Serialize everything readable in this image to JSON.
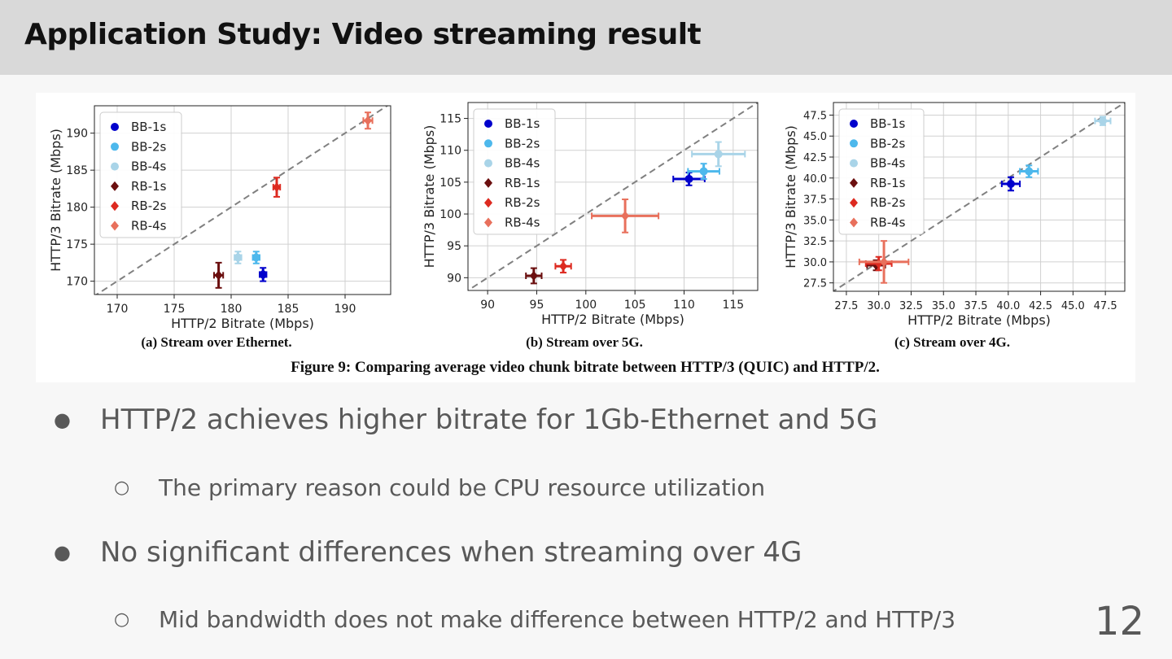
{
  "slide": {
    "title": "Application Study: Video streaming result",
    "page_number": "12"
  },
  "figure": {
    "caption": "Figure 9: Comparing average video chunk bitrate between HTTP/3 (QUIC) and HTTP/2."
  },
  "bullets": [
    {
      "level": 1,
      "marker": "●",
      "text": "HTTP/2 achieves higher bitrate for 1Gb-Ethernet and 5G"
    },
    {
      "level": 2,
      "marker": "○",
      "text": "The primary reason could be CPU resource utilization"
    },
    {
      "level": 1,
      "marker": "●",
      "text": "No significant differences when streaming over 4G"
    },
    {
      "level": 2,
      "marker": "○",
      "text": "Mid bandwidth does not make difference between HTTP/2 and HTTP/3"
    }
  ],
  "colors": {
    "BB-1s": "#0000cc",
    "BB-2s": "#4db8ec",
    "BB-4s": "#a9d4e8",
    "RB-1s": "#6b0f0f",
    "RB-2s": "#dd2a20",
    "RB-4s": "#e8705c",
    "diagonal": "#808080"
  },
  "chart_data": [
    {
      "type": "scatter",
      "subcaption": "(a) Stream over Ethernet.",
      "xlabel": "HTTP/2 Bitrate (Mbps)",
      "ylabel": "HTTP/3 Bitrate (Mbps)",
      "xlim": [
        168,
        194
      ],
      "ylim": [
        168.2,
        193.7
      ],
      "xticks": [
        170,
        175,
        180,
        185,
        190
      ],
      "yticks": [
        170,
        175,
        180,
        185,
        190
      ],
      "xtick_labels": [
        "170",
        "175",
        "180",
        "185",
        "190"
      ],
      "ytick_labels": [
        "170",
        "175",
        "180",
        "185",
        "190"
      ],
      "grid": true,
      "legend_position": "top-left",
      "diagonal": "y = x (dashed)",
      "series": [
        {
          "name": "BB-1s",
          "marker": "circle",
          "points": [
            {
              "x": 182.8,
              "y": 170.9,
              "xerr": 0.3,
              "yerr": 0.9
            }
          ]
        },
        {
          "name": "BB-2s",
          "marker": "circle",
          "points": [
            {
              "x": 182.2,
              "y": 173.2,
              "xerr": 0.3,
              "yerr": 0.8
            }
          ]
        },
        {
          "name": "BB-4s",
          "marker": "circle",
          "points": [
            {
              "x": 180.6,
              "y": 173.2,
              "xerr": 0.3,
              "yerr": 0.8
            }
          ]
        },
        {
          "name": "RB-1s",
          "marker": "diamond",
          "points": [
            {
              "x": 178.9,
              "y": 170.8,
              "xerr": 0.4,
              "yerr": 1.7
            }
          ]
        },
        {
          "name": "RB-2s",
          "marker": "diamond",
          "points": [
            {
              "x": 184.0,
              "y": 182.7,
              "xerr": 0.3,
              "yerr": 1.3
            }
          ]
        },
        {
          "name": "RB-4s",
          "marker": "diamond",
          "points": [
            {
              "x": 192.0,
              "y": 191.7,
              "xerr": 0.4,
              "yerr": 1.1
            }
          ]
        }
      ]
    },
    {
      "type": "scatter",
      "subcaption": "(b) Stream over 5G.",
      "xlabel": "HTTP/2 Bitrate (Mbps)",
      "ylabel": "HTTP/3 Bitrate (Mbps)",
      "xlim": [
        88,
        117.5
      ],
      "ylim": [
        88,
        117.5
      ],
      "xticks": [
        90,
        95,
        100,
        105,
        110,
        115
      ],
      "yticks": [
        90,
        95,
        100,
        105,
        110,
        115
      ],
      "xtick_labels": [
        "90",
        "95",
        "100",
        "105",
        "110",
        "115"
      ],
      "ytick_labels": [
        "90",
        "95",
        "100",
        "105",
        "110",
        "115"
      ],
      "grid": true,
      "legend_position": "top-left",
      "diagonal": "y = x (dashed)",
      "series": [
        {
          "name": "BB-1s",
          "marker": "circle",
          "points": [
            {
              "x": 110.5,
              "y": 105.5,
              "xerr": 1.6,
              "yerr": 1.0
            }
          ]
        },
        {
          "name": "BB-2s",
          "marker": "circle",
          "points": [
            {
              "x": 112.0,
              "y": 106.7,
              "xerr": 1.6,
              "yerr": 1.2
            }
          ]
        },
        {
          "name": "BB-4s",
          "marker": "circle",
          "points": [
            {
              "x": 113.5,
              "y": 109.4,
              "xerr": 2.7,
              "yerr": 1.9
            }
          ]
        },
        {
          "name": "RB-1s",
          "marker": "diamond",
          "points": [
            {
              "x": 94.7,
              "y": 90.3,
              "xerr": 0.8,
              "yerr": 1.2
            }
          ]
        },
        {
          "name": "RB-2s",
          "marker": "diamond",
          "points": [
            {
              "x": 97.7,
              "y": 91.8,
              "xerr": 0.8,
              "yerr": 1.0
            }
          ]
        },
        {
          "name": "RB-4s",
          "marker": "diamond",
          "points": [
            {
              "x": 104.0,
              "y": 99.7,
              "xerr": 3.4,
              "yerr": 2.6
            }
          ]
        }
      ]
    },
    {
      "type": "scatter",
      "subcaption": "(c) Stream over 4G.",
      "xlabel": "HTTP/2 Bitrate (Mbps)",
      "ylabel": "HTTP/3 Bitrate (Mbps)",
      "xlim": [
        26.5,
        49
      ],
      "ylim": [
        26.5,
        49
      ],
      "xticks": [
        27.5,
        30.0,
        32.5,
        35.0,
        37.5,
        40.0,
        42.5,
        45.0,
        47.5
      ],
      "yticks": [
        27.5,
        30.0,
        32.5,
        35.0,
        37.5,
        40.0,
        42.5,
        45.0,
        47.5
      ],
      "xtick_labels": [
        "27.5",
        "30.0",
        "32.5",
        "35.0",
        "37.5",
        "40.0",
        "42.5",
        "45.0",
        "47.5"
      ],
      "ytick_labels": [
        "27.5",
        "30.0",
        "32.5",
        "35.0",
        "37.5",
        "40.0",
        "42.5",
        "45.0",
        "47.5"
      ],
      "grid": true,
      "legend_position": "top-left",
      "diagonal": "y = x (dashed)",
      "series": [
        {
          "name": "BB-1s",
          "marker": "circle",
          "points": [
            {
              "x": 40.2,
              "y": 39.3,
              "xerr": 0.7,
              "yerr": 0.8
            }
          ]
        },
        {
          "name": "BB-2s",
          "marker": "circle",
          "points": [
            {
              "x": 41.6,
              "y": 40.8,
              "xerr": 0.7,
              "yerr": 0.7
            }
          ]
        },
        {
          "name": "BB-4s",
          "marker": "circle",
          "points": [
            {
              "x": 47.3,
              "y": 46.8,
              "xerr": 0.6,
              "yerr": 0.5
            }
          ]
        },
        {
          "name": "RB-1s",
          "marker": "diamond",
          "points": [
            {
              "x": 29.8,
              "y": 29.6,
              "xerr": 0.7,
              "yerr": 0.6
            }
          ]
        },
        {
          "name": "RB-2s",
          "marker": "diamond",
          "points": [
            {
              "x": 30.0,
              "y": 29.8,
              "xerr": 1.0,
              "yerr": 0.8
            }
          ]
        },
        {
          "name": "RB-4s",
          "marker": "diamond",
          "points": [
            {
              "x": 30.4,
              "y": 30.0,
              "xerr": 1.9,
              "yerr": 2.5
            }
          ]
        }
      ]
    }
  ]
}
